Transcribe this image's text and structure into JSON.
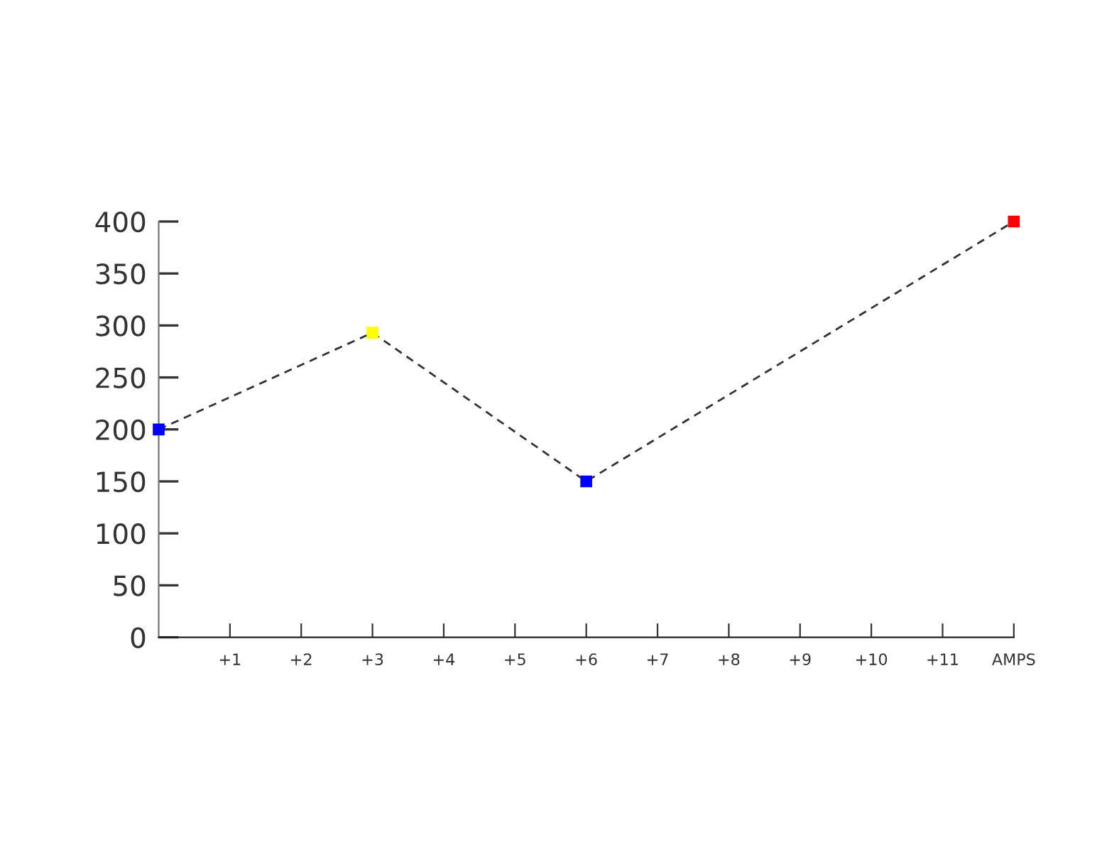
{
  "chart_data": {
    "type": "line",
    "xlim": [
      0,
      12
    ],
    "xticks": [
      {
        "value": 1,
        "label": "+1"
      },
      {
        "value": 2,
        "label": "+2"
      },
      {
        "value": 3,
        "label": "+3"
      },
      {
        "value": 4,
        "label": "+4"
      },
      {
        "value": 5,
        "label": "+5"
      },
      {
        "value": 6,
        "label": "+6"
      },
      {
        "value": 7,
        "label": "+7"
      },
      {
        "value": 8,
        "label": "+8"
      },
      {
        "value": 9,
        "label": "+9"
      },
      {
        "value": 10,
        "label": "+10"
      },
      {
        "value": 11,
        "label": "+11"
      },
      {
        "value": 12,
        "label": "AMPS"
      }
    ],
    "ylim": [
      0,
      400
    ],
    "yticks": [
      0,
      50,
      100,
      150,
      200,
      250,
      300,
      350,
      400
    ],
    "series": [
      {
        "x": [
          0,
          3,
          6,
          12
        ],
        "values": [
          200,
          293,
          150,
          400
        ],
        "color": "#333333",
        "colors": [
          "#0000ff",
          "#ffff00",
          "#0000ff",
          "#ff0000"
        ]
      }
    ],
    "marker": "square",
    "line_style": "dashed",
    "grid": false,
    "legend": false
  }
}
